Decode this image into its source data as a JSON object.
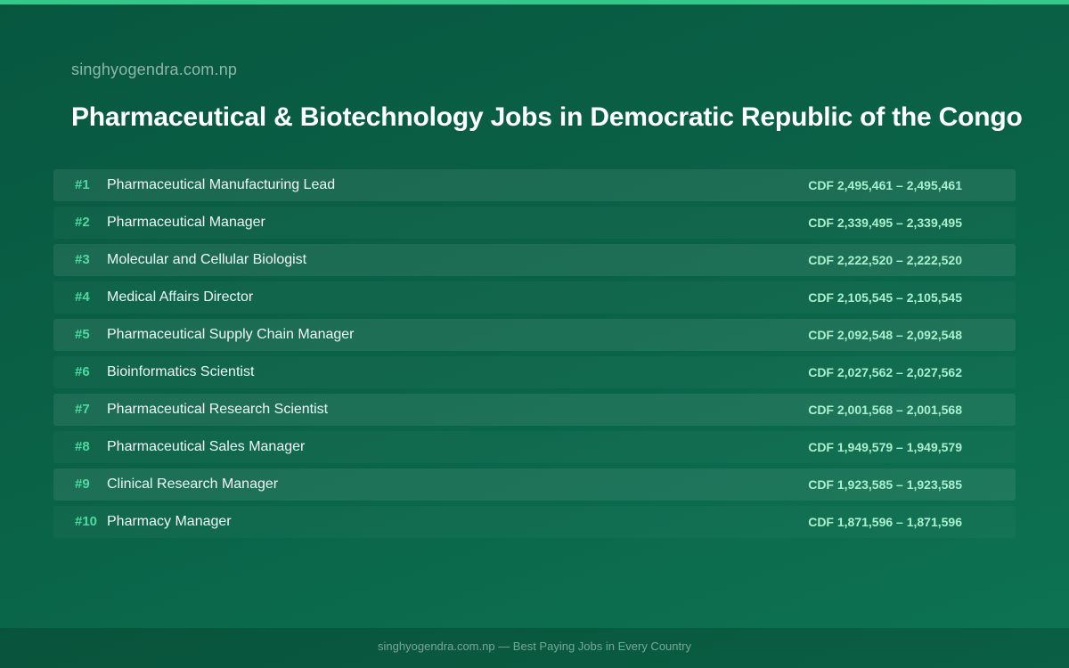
{
  "header": {
    "site": "singhyogendra.com.np",
    "title": "Pharmaceutical & Biotechnology Jobs in Democratic Republic of the Congo"
  },
  "jobs": [
    {
      "rank": "#1",
      "title": "Pharmaceutical Manufacturing Lead",
      "salary": "CDF 2,495,461 – 2,495,461"
    },
    {
      "rank": "#2",
      "title": "Pharmaceutical Manager",
      "salary": "CDF 2,339,495 – 2,339,495"
    },
    {
      "rank": "#3",
      "title": "Molecular and Cellular Biologist",
      "salary": "CDF 2,222,520 – 2,222,520"
    },
    {
      "rank": "#4",
      "title": "Medical Affairs Director",
      "salary": "CDF 2,105,545 – 2,105,545"
    },
    {
      "rank": "#5",
      "title": "Pharmaceutical Supply Chain Manager",
      "salary": "CDF 2,092,548 – 2,092,548"
    },
    {
      "rank": "#6",
      "title": "Bioinformatics Scientist",
      "salary": "CDF 2,027,562 – 2,027,562"
    },
    {
      "rank": "#7",
      "title": "Pharmaceutical Research Scientist",
      "salary": "CDF 2,001,568 – 2,001,568"
    },
    {
      "rank": "#8",
      "title": "Pharmaceutical Sales Manager",
      "salary": "CDF 1,949,579 – 1,949,579"
    },
    {
      "rank": "#9",
      "title": "Clinical Research Manager",
      "salary": "CDF 1,923,585 – 1,923,585"
    },
    {
      "rank": "#10",
      "title": "Pharmacy Manager",
      "salary": "CDF 1,871,596 – 1,871,596"
    }
  ],
  "footer": {
    "text": "singhyogendra.com.np — Best Paying Jobs in Every Country"
  },
  "colors": {
    "background": "#0a6347",
    "accent_bar": "#34c88a",
    "rank": "#4fd9a0",
    "salary": "#a8f0cf"
  }
}
